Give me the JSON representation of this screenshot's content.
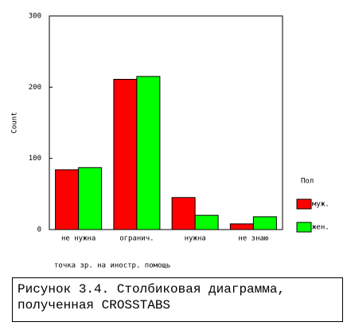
{
  "chart_data": {
    "type": "bar",
    "categories": [
      "не нужна",
      "огранич.",
      "нужна",
      "не знаю"
    ],
    "series": [
      {
        "name": "муж.",
        "color": "#ff0000",
        "values": [
          84,
          211,
          45,
          8
        ]
      },
      {
        "name": "жен.",
        "color": "#00ff00",
        "values": [
          87,
          215,
          20,
          18
        ]
      }
    ],
    "ylim": [
      0,
      300
    ],
    "yticks": [
      0,
      100,
      200,
      300
    ],
    "y_label": "Count",
    "x_label": "точка зр. на иностр. помощь",
    "legend_title": "Пол",
    "legend": "right",
    "caption": "Рисунок 3.4. Столбиковая диаграмма, полученная CROSSTABS"
  }
}
